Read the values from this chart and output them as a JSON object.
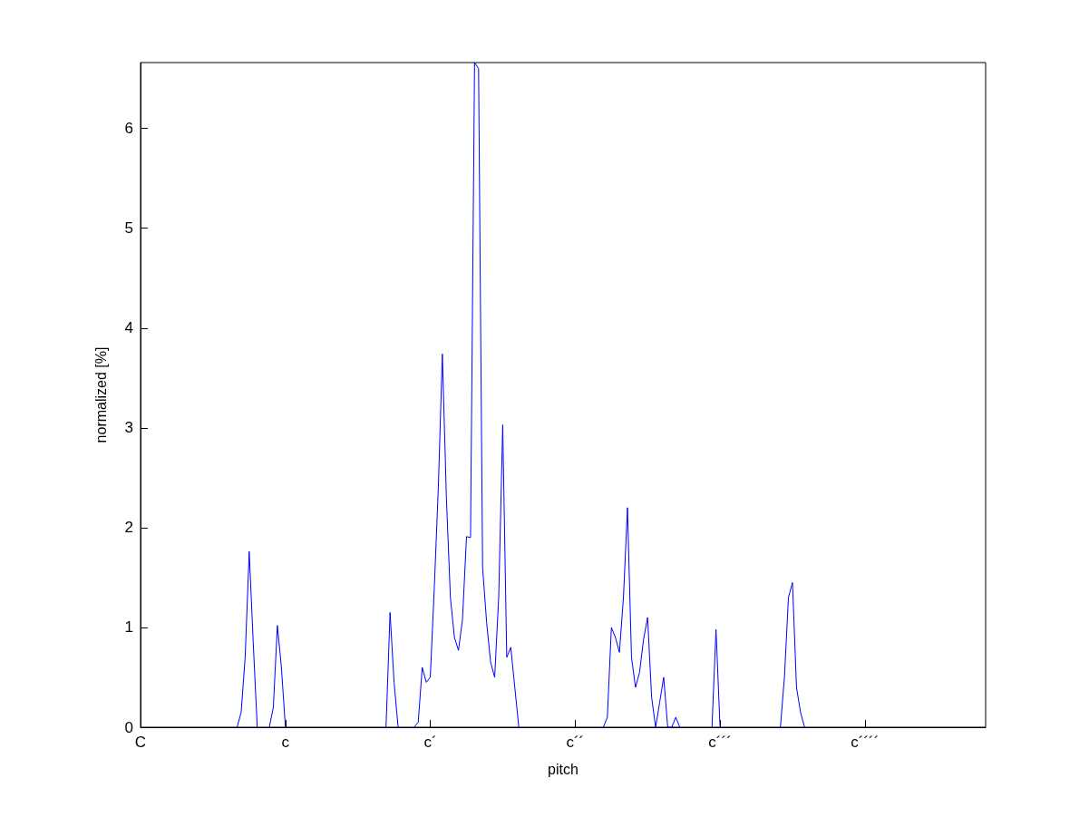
{
  "chart_data": {
    "type": "line",
    "xlabel": "pitch",
    "ylabel": "normalized [%]",
    "ylim": [
      0,
      6.66
    ],
    "yticks": [
      0,
      1,
      2,
      3,
      4,
      5,
      6
    ],
    "grid": false,
    "legend": false,
    "marker": "none",
    "line_style": "solid",
    "categories": [
      "C",
      null,
      null,
      null,
      null,
      null,
      null,
      null,
      null,
      null,
      null,
      null,
      null,
      null,
      null,
      null,
      null,
      null,
      null,
      null,
      null,
      null,
      null,
      null,
      null,
      null,
      null,
      null,
      null,
      null,
      null,
      null,
      null,
      null,
      null,
      null,
      "c",
      null,
      null,
      null,
      null,
      null,
      null,
      null,
      null,
      null,
      null,
      null,
      null,
      null,
      null,
      null,
      null,
      null,
      null,
      null,
      null,
      null,
      null,
      null,
      null,
      null,
      null,
      null,
      null,
      null,
      null,
      null,
      null,
      null,
      null,
      null,
      "c´",
      null,
      null,
      null,
      null,
      null,
      null,
      null,
      null,
      null,
      null,
      null,
      null,
      null,
      null,
      null,
      null,
      null,
      null,
      null,
      null,
      null,
      null,
      null,
      null,
      null,
      null,
      null,
      null,
      null,
      null,
      null,
      null,
      null,
      null,
      null,
      "c´´",
      null,
      null,
      null,
      null,
      null,
      null,
      null,
      null,
      null,
      null,
      null,
      null,
      null,
      null,
      null,
      null,
      null,
      null,
      null,
      null,
      null,
      null,
      null,
      null,
      null,
      null,
      null,
      null,
      null,
      null,
      null,
      null,
      null,
      null,
      null,
      "c´´´",
      null,
      null,
      null,
      null,
      null,
      null,
      null,
      null,
      null,
      null,
      null,
      null,
      null,
      null,
      null,
      null,
      null,
      null,
      null,
      null,
      null,
      null,
      null,
      null,
      null,
      null,
      null,
      null,
      null,
      null,
      null,
      null,
      null,
      null,
      null,
      "c´´´´",
      null,
      null,
      null,
      null,
      null,
      null,
      null,
      null,
      null,
      null,
      null,
      null,
      null,
      null,
      null,
      null,
      null,
      null,
      null,
      null,
      null,
      null,
      null,
      null,
      null,
      null,
      null,
      null,
      null,
      null
    ],
    "series": [
      {
        "color": "#0000ff",
        "values": [
          null,
          null,
          null,
          null,
          null,
          null,
          null,
          null,
          null,
          null,
          null,
          null,
          null,
          null,
          null,
          null,
          null,
          null,
          null,
          null,
          null,
          null,
          null,
          null,
          0,
          0.15,
          0.7,
          1.76,
          0.85,
          0,
          null,
          null,
          0,
          0.2,
          1.02,
          0.6,
          0,
          null,
          null,
          null,
          null,
          null,
          null,
          null,
          null,
          null,
          null,
          null,
          null,
          null,
          null,
          null,
          null,
          null,
          null,
          null,
          null,
          null,
          null,
          null,
          null,
          0,
          1.15,
          0.45,
          0,
          null,
          null,
          null,
          0,
          0.05,
          0.6,
          0.45,
          0.5,
          1.4,
          2.4,
          3.74,
          2.3,
          1.3,
          0.9,
          0.77,
          1.08,
          1.91,
          1.9,
          6.66,
          6.6,
          1.6,
          1.05,
          0.65,
          0.5,
          1.3,
          3.03,
          0.7,
          0.8,
          0.4,
          0,
          null,
          null,
          null,
          null,
          null,
          null,
          null,
          null,
          null,
          null,
          null,
          null,
          null,
          null,
          null,
          null,
          null,
          null,
          null,
          null,
          0,
          0.1,
          1.0,
          0.9,
          0.75,
          1.3,
          2.2,
          0.7,
          0.4,
          0.55,
          0.88,
          1.1,
          0.3,
          0,
          0.25,
          0.5,
          0,
          0,
          0.1,
          0,
          null,
          null,
          null,
          null,
          null,
          null,
          null,
          0,
          0.98,
          0,
          null,
          null,
          null,
          null,
          null,
          null,
          null,
          null,
          null,
          null,
          null,
          null,
          null,
          null,
          0,
          0.5,
          1.3,
          1.45,
          0.4,
          0.15,
          0,
          null,
          null,
          null,
          null,
          null,
          null,
          null,
          null,
          null,
          null,
          null,
          null,
          null,
          null,
          null,
          null,
          null,
          null,
          null,
          null,
          null,
          null,
          null,
          null,
          null,
          null,
          null,
          null,
          null,
          null,
          null,
          null,
          null,
          null,
          null,
          null,
          null,
          null,
          null,
          null,
          null,
          null,
          null,
          null,
          null
        ]
      }
    ]
  }
}
